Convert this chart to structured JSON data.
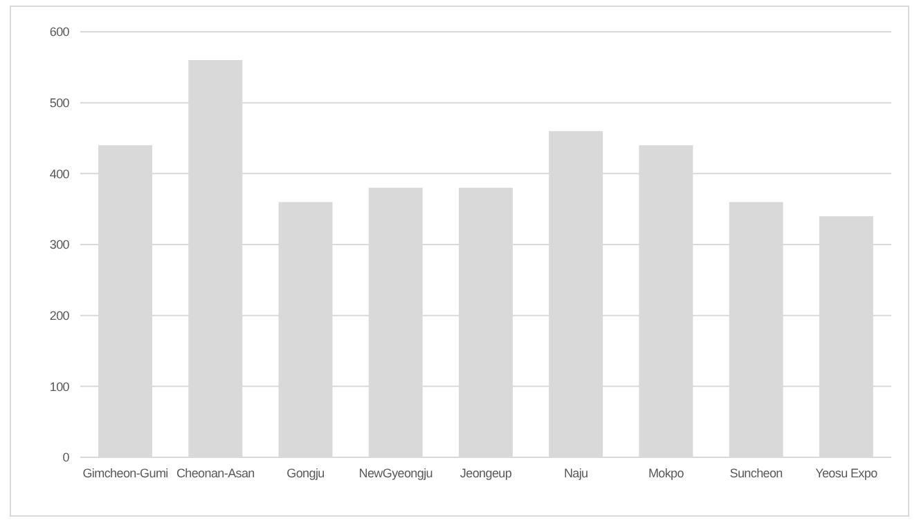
{
  "chart_data": {
    "type": "bar",
    "categories": [
      "Gimcheon-Gumi",
      "Cheonan-Asan",
      "Gongju",
      "NewGyeongju",
      "Jeongeup",
      "Naju",
      "Mokpo",
      "Suncheon",
      "Yeosu Expo"
    ],
    "values": [
      440,
      560,
      360,
      380,
      380,
      460,
      440,
      360,
      340
    ],
    "color": "#d9d9d9",
    "ylim": [
      0,
      600
    ],
    "yticks": [
      0,
      100,
      200,
      300,
      400,
      500,
      600
    ],
    "grid": "y"
  }
}
